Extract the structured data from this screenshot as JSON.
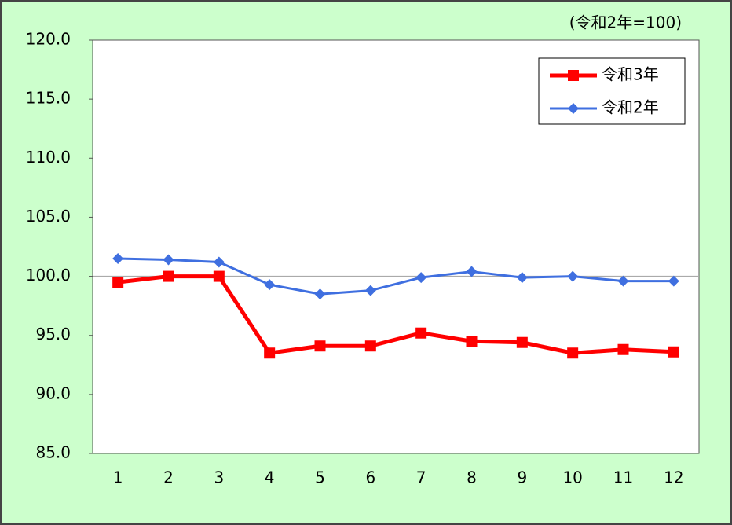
{
  "chart_data": {
    "type": "line",
    "note": "(令和2年=100)",
    "categories": [
      "1",
      "2",
      "3",
      "4",
      "5",
      "6",
      "7",
      "8",
      "9",
      "10",
      "11",
      "12"
    ],
    "series": [
      {
        "name": "令和3年",
        "color": "#ff0000",
        "marker": "square",
        "values": [
          99.5,
          100.0,
          100.0,
          93.5,
          94.1,
          94.1,
          95.2,
          94.5,
          94.4,
          93.5,
          93.8,
          93.6
        ]
      },
      {
        "name": "令和2年",
        "color": "#3f6fe0",
        "marker": "diamond",
        "values": [
          101.5,
          101.4,
          101.2,
          99.3,
          98.5,
          98.8,
          99.9,
          100.4,
          99.9,
          100.0,
          99.6,
          99.6
        ]
      }
    ],
    "ylim": [
      85,
      120
    ],
    "yticks": [
      {
        "value": 85,
        "label": "85.0"
      },
      {
        "value": 90,
        "label": "90.0"
      },
      {
        "value": 95,
        "label": "95.0"
      },
      {
        "value": 100,
        "label": "100.0"
      },
      {
        "value": 105,
        "label": "105.0"
      },
      {
        "value": 110,
        "label": "110.0"
      },
      {
        "value": 115,
        "label": "115.0"
      },
      {
        "value": 120,
        "label": "120.0"
      }
    ],
    "reference_line": 100,
    "legend": "upper right"
  }
}
